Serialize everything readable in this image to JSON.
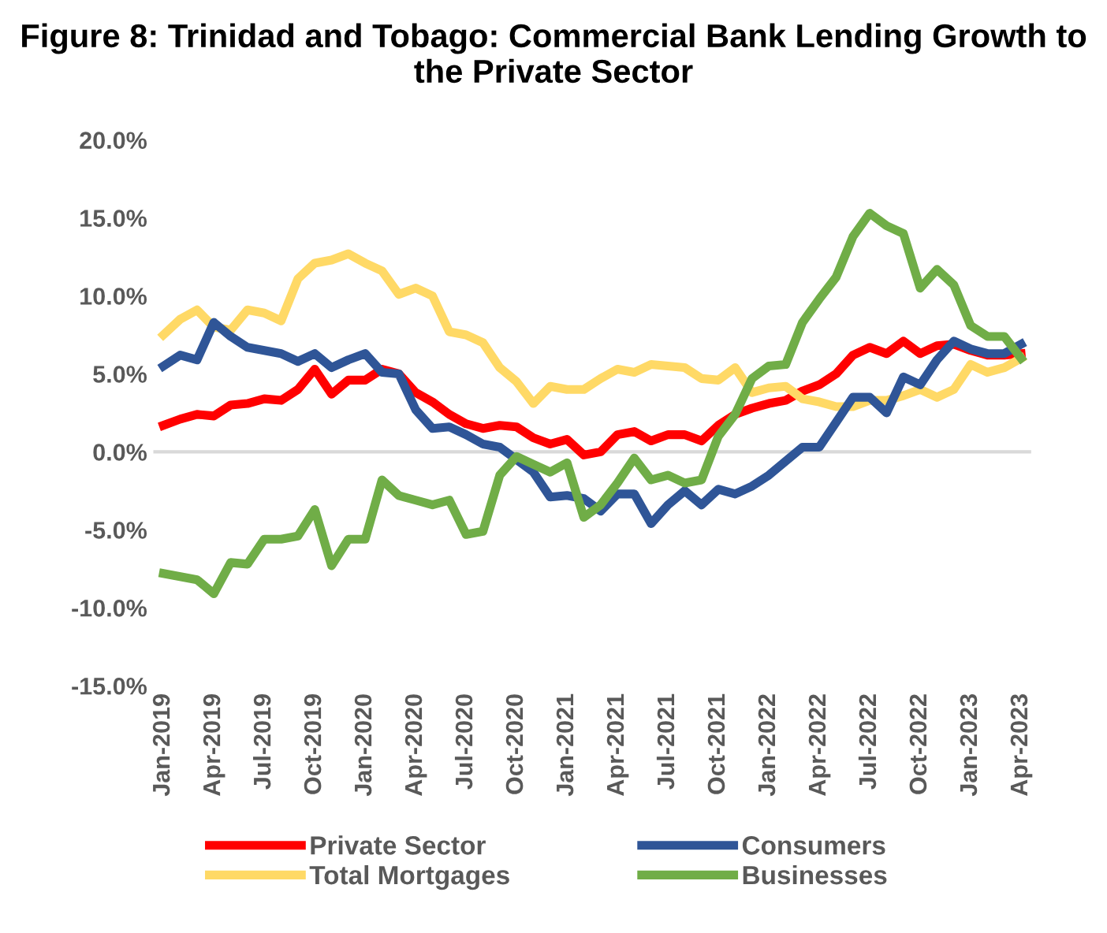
{
  "chart_data": {
    "type": "line",
    "title": "Figure 8: Trinidad and Tobago: Commercial Bank Lending Growth to the Private Sector",
    "categories": [
      "Jan-2019",
      null,
      null,
      "Apr-2019",
      null,
      null,
      "Jul-2019",
      null,
      null,
      "Oct-2019",
      null,
      null,
      "Jan-2020",
      null,
      null,
      "Apr-2020",
      null,
      null,
      "Jul-2020",
      null,
      null,
      "Oct-2020",
      null,
      null,
      "Jan-2021",
      null,
      null,
      "Apr-2021",
      null,
      null,
      "Jul-2021",
      null,
      null,
      "Oct-2021",
      null,
      null,
      "Jan-2022",
      null,
      null,
      "Apr-2022",
      null,
      null,
      "Jul-2022",
      null,
      null,
      "Oct-2022",
      null,
      null,
      "Jan-2023",
      null,
      null,
      "Apr-2023"
    ],
    "series": [
      {
        "name": "Private Sector",
        "color": "#ff0000",
        "values": [
          1.7,
          2.1,
          2.4,
          2.3,
          3.0,
          3.1,
          3.4,
          3.3,
          4.0,
          5.3,
          3.7,
          4.6,
          4.6,
          5.3,
          5.0,
          3.8,
          3.2,
          2.4,
          1.8,
          1.5,
          1.7,
          1.6,
          0.9,
          0.5,
          0.8,
          -0.2,
          0.0,
          1.1,
          1.3,
          0.7,
          1.1,
          1.1,
          0.7,
          1.7,
          2.4,
          2.8,
          3.1,
          3.3,
          3.9,
          4.3,
          5.0,
          6.2,
          6.7,
          6.3,
          7.1,
          6.3,
          6.8,
          6.9,
          6.5,
          6.2,
          6.2,
          6.3
        ]
      },
      {
        "name": "Total Mortgages",
        "color": "#ffd966",
        "values": [
          7.5,
          8.5,
          9.1,
          8.0,
          7.8,
          9.1,
          8.9,
          8.4,
          11.1,
          12.1,
          12.3,
          12.7,
          12.1,
          11.6,
          10.1,
          10.5,
          10.0,
          7.7,
          7.5,
          7.0,
          5.4,
          4.5,
          3.1,
          4.2,
          4.0,
          4.0,
          4.7,
          5.3,
          5.1,
          5.6,
          5.5,
          5.4,
          4.7,
          4.6,
          5.4,
          3.8,
          4.1,
          4.2,
          3.4,
          3.2,
          2.9,
          2.9,
          3.3,
          3.3,
          3.6,
          4.0,
          3.5,
          4.0,
          5.6,
          5.1,
          5.4,
          6.0
        ]
      },
      {
        "name": "Consumers",
        "color": "#2f5597",
        "values": [
          5.5,
          6.2,
          5.9,
          8.3,
          7.4,
          6.7,
          6.5,
          6.3,
          5.8,
          6.3,
          5.4,
          5.9,
          6.3,
          5.1,
          5.0,
          2.7,
          1.5,
          1.6,
          1.1,
          0.5,
          0.3,
          -0.5,
          -1.3,
          -2.9,
          -2.8,
          -3.0,
          -3.8,
          -2.7,
          -2.7,
          -4.6,
          -3.4,
          -2.5,
          -3.4,
          -2.4,
          -2.7,
          -2.2,
          -1.5,
          -0.6,
          0.3,
          0.3,
          1.9,
          3.5,
          3.5,
          2.5,
          4.8,
          4.3,
          5.9,
          7.1,
          6.6,
          6.3,
          6.3,
          6.9
        ]
      },
      {
        "name": "Businesses",
        "color": "#70ad47",
        "values": [
          -7.8,
          -8.0,
          -8.2,
          -9.1,
          -7.1,
          -7.2,
          -5.6,
          -5.6,
          -5.4,
          -3.7,
          -7.3,
          -5.6,
          -5.6,
          -1.8,
          -2.8,
          -3.1,
          -3.4,
          -3.1,
          -5.3,
          -5.1,
          -1.5,
          -0.3,
          -0.8,
          -1.3,
          -0.7,
          -4.2,
          -3.4,
          -2.0,
          -0.4,
          -1.8,
          -1.5,
          -2.0,
          -1.8,
          1.0,
          2.4,
          4.7,
          5.5,
          5.6,
          8.3,
          9.8,
          11.2,
          13.8,
          15.3,
          14.5,
          14.0,
          10.5,
          11.7,
          10.7,
          8.1,
          7.4,
          7.4,
          6.0
        ]
      }
    ],
    "ylim": [
      -15,
      20
    ],
    "yticks": [
      {
        "value": -15,
        "label": "-15.0%"
      },
      {
        "value": -10,
        "label": "-10.0%"
      },
      {
        "value": -5,
        "label": "-5.0%"
      },
      {
        "value": 0,
        "label": "0.0%"
      },
      {
        "value": 5,
        "label": "5.0%"
      },
      {
        "value": 10,
        "label": "10.0%"
      },
      {
        "value": 15,
        "label": "15.0%"
      },
      {
        "value": 20,
        "label": "20.0%"
      }
    ],
    "legend": "bottom",
    "marker": "none",
    "line_style": "solid"
  }
}
